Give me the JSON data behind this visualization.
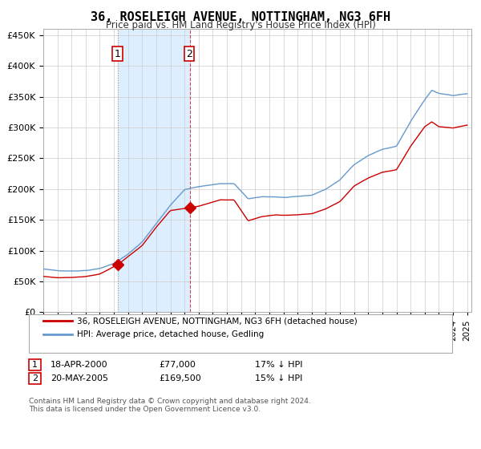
{
  "title": "36, ROSELEIGH AVENUE, NOTTINGHAM, NG3 6FH",
  "subtitle": "Price paid vs. HM Land Registry's House Price Index (HPI)",
  "xlabel": "",
  "ylabel": "",
  "legend_line1": "36, ROSELEIGH AVENUE, NOTTINGHAM, NG3 6FH (detached house)",
  "legend_line2": "HPI: Average price, detached house, Gedling",
  "sale1_date": "18-APR-2000",
  "sale1_price": 77000,
  "sale1_label": "17% ↓ HPI",
  "sale2_date": "20-MAY-2005",
  "sale2_price": 169500,
  "sale2_label": "15% ↓ HPI",
  "sale1_year": 2000.3,
  "sale2_year": 2005.38,
  "red_color": "#cc0000",
  "blue_color": "#6699cc",
  "shade_color": "#ddeeff",
  "background_color": "#ffffff",
  "grid_color": "#cccccc",
  "footnote": "Contains HM Land Registry data © Crown copyright and database right 2024.\nThis data is licensed under the Open Government Licence v3.0.",
  "ylim": [
    0,
    460000
  ],
  "yticks": [
    0,
    50000,
    100000,
    150000,
    200000,
    250000,
    300000,
    350000,
    400000,
    450000
  ],
  "xlim_start": 1995.0,
  "xlim_end": 2025.3
}
